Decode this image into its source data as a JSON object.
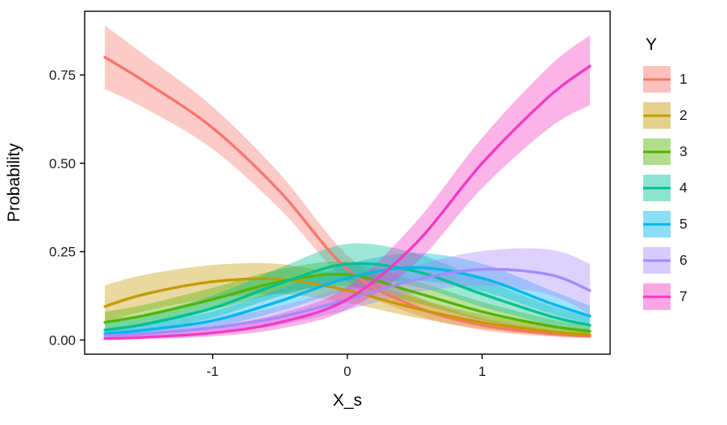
{
  "figure": {
    "y_axis_label": "Probability",
    "x_axis_label": "X_s",
    "legend_title": "Y"
  },
  "chart_data": {
    "type": "line",
    "title": "",
    "xlabel": "X_s",
    "ylabel": "Probability",
    "legend_title": "Y",
    "legend_position": "right",
    "grid": false,
    "xlim": [
      -1.95,
      1.95
    ],
    "ylim": [
      -0.04,
      0.93
    ],
    "x_ticks": [
      -1,
      0,
      1
    ],
    "x_tick_labels": [
      "-1",
      "0",
      "1"
    ],
    "y_ticks": [
      0,
      0.25,
      0.5,
      0.75
    ],
    "y_tick_labels": [
      "0.00",
      "0.25",
      "0.50",
      "0.75"
    ],
    "x": [
      -1.8,
      -1.5,
      -1.0,
      -0.5,
      0,
      0.5,
      1.0,
      1.5,
      1.8
    ],
    "series": [
      {
        "name": "1",
        "color": "#F8766D",
        "values": [
          0.8,
          0.73,
          0.6,
          0.42,
          0.2,
          0.095,
          0.042,
          0.018,
          0.011
        ],
        "lower": [
          0.71,
          0.655,
          0.54,
          0.37,
          0.165,
          0.072,
          0.028,
          0.01,
          0.005
        ],
        "upper": [
          0.89,
          0.805,
          0.66,
          0.47,
          0.24,
          0.125,
          0.062,
          0.03,
          0.021
        ]
      },
      {
        "name": "2",
        "color": "#C49A00",
        "values": [
          0.095,
          0.13,
          0.165,
          0.172,
          0.14,
          0.09,
          0.05,
          0.024,
          0.015
        ],
        "lower": [
          0.05,
          0.082,
          0.118,
          0.13,
          0.105,
          0.064,
          0.032,
          0.013,
          0.007
        ],
        "upper": [
          0.155,
          0.185,
          0.212,
          0.215,
          0.178,
          0.12,
          0.072,
          0.04,
          0.027
        ]
      },
      {
        "name": "3",
        "color": "#53B400",
        "values": [
          0.05,
          0.07,
          0.115,
          0.165,
          0.185,
          0.135,
          0.08,
          0.04,
          0.025
        ],
        "lower": [
          0.03,
          0.046,
          0.086,
          0.132,
          0.152,
          0.106,
          0.056,
          0.025,
          0.014
        ],
        "upper": [
          0.08,
          0.1,
          0.148,
          0.2,
          0.221,
          0.168,
          0.108,
          0.06,
          0.041
        ]
      },
      {
        "name": "4",
        "color": "#00C094",
        "values": [
          0.028,
          0.045,
          0.09,
          0.16,
          0.215,
          0.195,
          0.13,
          0.068,
          0.042
        ],
        "lower": [
          0.015,
          0.027,
          0.063,
          0.124,
          0.168,
          0.152,
          0.094,
          0.044,
          0.024
        ],
        "upper": [
          0.05,
          0.072,
          0.126,
          0.204,
          0.272,
          0.246,
          0.172,
          0.098,
          0.066
        ]
      },
      {
        "name": "5",
        "color": "#00B6EB",
        "values": [
          0.018,
          0.028,
          0.055,
          0.11,
          0.175,
          0.205,
          0.175,
          0.105,
          0.068
        ],
        "lower": [
          0.009,
          0.016,
          0.036,
          0.082,
          0.14,
          0.168,
          0.138,
          0.076,
          0.046
        ],
        "upper": [
          0.033,
          0.047,
          0.081,
          0.144,
          0.214,
          0.246,
          0.216,
          0.142,
          0.097
        ]
      },
      {
        "name": "6",
        "color": "#A58AFF",
        "values": [
          0.012,
          0.018,
          0.035,
          0.065,
          0.115,
          0.17,
          0.2,
          0.185,
          0.14
        ],
        "lower": [
          0.005,
          0.009,
          0.02,
          0.043,
          0.085,
          0.134,
          0.154,
          0.128,
          0.072
        ],
        "upper": [
          0.025,
          0.034,
          0.058,
          0.096,
          0.152,
          0.21,
          0.252,
          0.256,
          0.216
        ]
      },
      {
        "name": "7",
        "color": "#F23BC3",
        "values": [
          0.004,
          0.008,
          0.02,
          0.05,
          0.115,
          0.27,
          0.5,
          0.69,
          0.775
        ],
        "lower": [
          0.001,
          0.003,
          0.01,
          0.032,
          0.086,
          0.214,
          0.43,
          0.6,
          0.665
        ],
        "upper": [
          0.012,
          0.018,
          0.038,
          0.075,
          0.15,
          0.33,
          0.572,
          0.775,
          0.862
        ]
      }
    ]
  }
}
